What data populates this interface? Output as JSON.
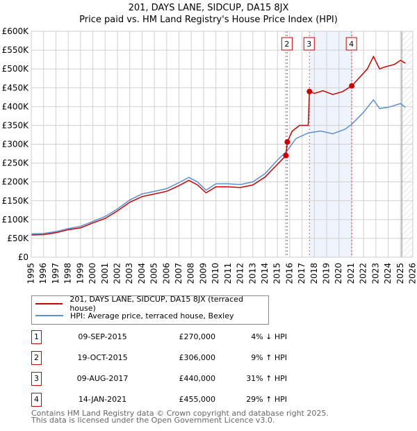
{
  "title": "201, DAYS LANE, SIDCUP, DA15 8JX",
  "subtitle": "Price paid vs. HM Land Registry's House Price Index (HPI)",
  "chart_data": {
    "type": "line",
    "xlim": [
      1995,
      2026
    ],
    "ylim": [
      0,
      600000
    ],
    "x_ticks": [
      1995,
      1996,
      1997,
      1998,
      1999,
      2000,
      2001,
      2002,
      2003,
      2004,
      2005,
      2006,
      2007,
      2008,
      2009,
      2010,
      2011,
      2012,
      2013,
      2014,
      2015,
      2016,
      2017,
      2018,
      2019,
      2020,
      2021,
      2022,
      2023,
      2024,
      2025,
      2026
    ],
    "y_ticks": [
      {
        "v": 0,
        "l": "£0"
      },
      {
        "v": 50000,
        "l": "£50K"
      },
      {
        "v": 100000,
        "l": "£100K"
      },
      {
        "v": 150000,
        "l": "£150K"
      },
      {
        "v": 200000,
        "l": "£200K"
      },
      {
        "v": 250000,
        "l": "£250K"
      },
      {
        "v": 300000,
        "l": "£300K"
      },
      {
        "v": 350000,
        "l": "£350K"
      },
      {
        "v": 400000,
        "l": "£400K"
      },
      {
        "v": 450000,
        "l": "£450K"
      },
      {
        "v": 500000,
        "l": "£500K"
      },
      {
        "v": 550000,
        "l": "£550K"
      },
      {
        "v": 600000,
        "l": "£600K"
      }
    ],
    "grid": true,
    "shaded_range": [
      2017.6,
      2021.04
    ],
    "forecast_from": 2025.1,
    "series": [
      {
        "name": "201, DAYS LANE, SIDCUP, DA15 8JX (terraced house)",
        "color": "#cc0000",
        "points": [
          [
            1995,
            59000
          ],
          [
            1996,
            60000
          ],
          [
            1997,
            65000
          ],
          [
            1998,
            73000
          ],
          [
            1999,
            78000
          ],
          [
            2000,
            91000
          ],
          [
            2001,
            103000
          ],
          [
            2002,
            123000
          ],
          [
            2003,
            146000
          ],
          [
            2004,
            161000
          ],
          [
            2005,
            168000
          ],
          [
            2006,
            175000
          ],
          [
            2007,
            190000
          ],
          [
            2007.8,
            204000
          ],
          [
            2008.5,
            192000
          ],
          [
            2009.2,
            171000
          ],
          [
            2010,
            187000
          ],
          [
            2011,
            187000
          ],
          [
            2012,
            185000
          ],
          [
            2013,
            192000
          ],
          [
            2014,
            213000
          ],
          [
            2015,
            247000
          ],
          [
            2015.69,
            270000
          ],
          [
            2015.8,
            306000
          ],
          [
            2016.2,
            335000
          ],
          [
            2016.8,
            350000
          ],
          [
            2017.5,
            350000
          ],
          [
            2017.6,
            440000
          ],
          [
            2018,
            435000
          ],
          [
            2018.7,
            442000
          ],
          [
            2019.5,
            432000
          ],
          [
            2020.3,
            440000
          ],
          [
            2021.04,
            455000
          ],
          [
            2021.6,
            475000
          ],
          [
            2022.3,
            500000
          ],
          [
            2022.8,
            533000
          ],
          [
            2023.3,
            500000
          ],
          [
            2023.7,
            505000
          ],
          [
            2024.5,
            512000
          ],
          [
            2025,
            523000
          ],
          [
            2025.4,
            515000
          ]
        ]
      },
      {
        "name": "HPI: Average price, terraced house, Bexley",
        "color": "#5b8fd0",
        "points": [
          [
            1995,
            62000
          ],
          [
            1996,
            63000
          ],
          [
            1997,
            68000
          ],
          [
            1998,
            76000
          ],
          [
            1999,
            82000
          ],
          [
            2000,
            95000
          ],
          [
            2001,
            108000
          ],
          [
            2002,
            128000
          ],
          [
            2003,
            152000
          ],
          [
            2004,
            168000
          ],
          [
            2005,
            175000
          ],
          [
            2006,
            182000
          ],
          [
            2007,
            198000
          ],
          [
            2007.8,
            212000
          ],
          [
            2008.5,
            200000
          ],
          [
            2009.2,
            178000
          ],
          [
            2010,
            195000
          ],
          [
            2011,
            195000
          ],
          [
            2012,
            193000
          ],
          [
            2013,
            200000
          ],
          [
            2014,
            222000
          ],
          [
            2015,
            258000
          ],
          [
            2015.8,
            283000
          ],
          [
            2016.5,
            315000
          ],
          [
            2017.5,
            330000
          ],
          [
            2018.5,
            335000
          ],
          [
            2019.5,
            328000
          ],
          [
            2020.5,
            340000
          ],
          [
            2021,
            352000
          ],
          [
            2022,
            385000
          ],
          [
            2022.8,
            418000
          ],
          [
            2023.3,
            395000
          ],
          [
            2024,
            398000
          ],
          [
            2025,
            408000
          ],
          [
            2025.4,
            398000
          ]
        ]
      }
    ],
    "sales": [
      {
        "label": "1",
        "date": "09-SEP-2015",
        "x": 2015.69,
        "price": "£270,000",
        "value": 270000,
        "hpi": "4% ↓ HPI",
        "show_box": false
      },
      {
        "label": "2",
        "date": "19-OCT-2015",
        "x": 2015.8,
        "price": "£306,000",
        "value": 306000,
        "hpi": "9% ↑ HPI",
        "show_box": true
      },
      {
        "label": "3",
        "date": "09-AUG-2017",
        "x": 2017.6,
        "price": "£440,000",
        "value": 440000,
        "hpi": "31% ↑ HPI",
        "show_box": true
      },
      {
        "label": "4",
        "date": "14-JAN-2021",
        "x": 2021.04,
        "price": "£455,000",
        "value": 455000,
        "hpi": "29% ↑ HPI",
        "show_box": true
      }
    ]
  },
  "legend": {
    "red": "201, DAYS LANE, SIDCUP, DA15 8JX (terraced house)",
    "blue": "HPI: Average price, terraced house, Bexley"
  },
  "footer": {
    "line1": "Contains HM Land Registry data © Crown copyright and database right 2025.",
    "line2": "This data is licensed under the Open Government Licence v3.0."
  }
}
